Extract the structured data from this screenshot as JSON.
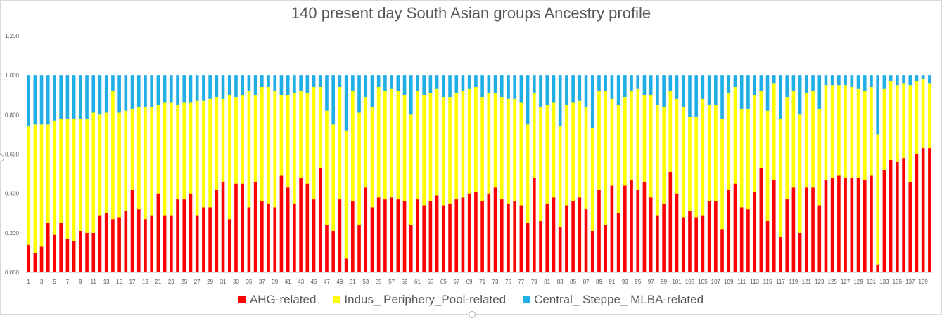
{
  "chart_data": {
    "type": "bar",
    "stacked": true,
    "title": "140 present day South Asian groups Ancestry profile",
    "ylim": [
      0,
      1.2
    ],
    "ytick_values": [
      0,
      0.2,
      0.4,
      0.6,
      0.8,
      1.0,
      1.2
    ],
    "ytick_labels": [
      "0.000",
      "0.200",
      "0.400",
      "0.600",
      "0.800",
      "1.000",
      "1.200"
    ],
    "grid": false,
    "legend_position": "bottom",
    "category_count": 140,
    "xtick_labels": [
      "1",
      "3",
      "5",
      "7",
      "9",
      "11",
      "13",
      "15",
      "17",
      "19",
      "21",
      "23",
      "25",
      "27",
      "29",
      "31",
      "33",
      "35",
      "37",
      "39",
      "41",
      "43",
      "45",
      "47",
      "49",
      "51",
      "53",
      "55",
      "57",
      "59",
      "61",
      "63",
      "65",
      "67",
      "69",
      "71",
      "73",
      "75",
      "77",
      "79",
      "81",
      "83",
      "85",
      "87",
      "89",
      "91",
      "93",
      "95",
      "97",
      "99",
      "101",
      "103",
      "105",
      "107",
      "109",
      "111",
      "113",
      "115",
      "117",
      "119",
      "121",
      "123",
      "125",
      "127",
      "129",
      "131",
      "133",
      "135",
      "137",
      "139"
    ],
    "series": [
      {
        "name": "AHG-related",
        "color": "#ff0000",
        "values": [
          0.14,
          0.1,
          0.13,
          0.25,
          0.19,
          0.25,
          0.17,
          0.16,
          0.21,
          0.2,
          0.2,
          0.29,
          0.3,
          0.27,
          0.28,
          0.31,
          0.42,
          0.32,
          0.27,
          0.29,
          0.4,
          0.29,
          0.29,
          0.37,
          0.37,
          0.4,
          0.29,
          0.33,
          0.33,
          0.42,
          0.46,
          0.27,
          0.45,
          0.45,
          0.33,
          0.46,
          0.36,
          0.35,
          0.33,
          0.49,
          0.43,
          0.35,
          0.48,
          0.45,
          0.37,
          0.53,
          0.24,
          0.21,
          0.37,
          0.07,
          0.36,
          0.24,
          0.43,
          0.33,
          0.38,
          0.37,
          0.38,
          0.37,
          0.36,
          0.24,
          0.37,
          0.34,
          0.36,
          0.39,
          0.34,
          0.35,
          0.37,
          0.38,
          0.4,
          0.41,
          0.36,
          0.4,
          0.43,
          0.37,
          0.35,
          0.36,
          0.34,
          0.25,
          0.48,
          0.26,
          0.35,
          0.38,
          0.23,
          0.34,
          0.36,
          0.38,
          0.32,
          0.21,
          0.42,
          0.24,
          0.44,
          0.3,
          0.44,
          0.47,
          0.42,
          0.46,
          0.38,
          0.29,
          0.35,
          0.51,
          0.4,
          0.28,
          0.31,
          0.28,
          0.29,
          0.36,
          0.36,
          0.22,
          0.42,
          0.45,
          0.33,
          0.32,
          0.41,
          0.53,
          0.26,
          0.47,
          0.18,
          0.37,
          0.43,
          0.2,
          0.43,
          0.43,
          0.34,
          0.47,
          0.48,
          0.49,
          0.48,
          0.48,
          0.48,
          0.47,
          0.49,
          0.04,
          0.52,
          0.57,
          0.56,
          0.58,
          0.46,
          0.6,
          0.63,
          0.63
        ]
      },
      {
        "name": "Indus_ Periphery_Pool-related",
        "color": "#ffff00",
        "values": [
          0.6,
          0.65,
          0.62,
          0.5,
          0.58,
          0.53,
          0.61,
          0.62,
          0.57,
          0.58,
          0.61,
          0.51,
          0.51,
          0.65,
          0.53,
          0.51,
          0.41,
          0.52,
          0.57,
          0.55,
          0.45,
          0.57,
          0.57,
          0.48,
          0.49,
          0.46,
          0.58,
          0.54,
          0.55,
          0.47,
          0.42,
          0.63,
          0.44,
          0.45,
          0.59,
          0.44,
          0.58,
          0.59,
          0.59,
          0.41,
          0.47,
          0.56,
          0.44,
          0.46,
          0.57,
          0.41,
          0.58,
          0.54,
          0.57,
          0.65,
          0.56,
          0.57,
          0.46,
          0.51,
          0.56,
          0.55,
          0.55,
          0.55,
          0.54,
          0.56,
          0.55,
          0.56,
          0.55,
          0.54,
          0.55,
          0.54,
          0.54,
          0.54,
          0.53,
          0.53,
          0.53,
          0.51,
          0.48,
          0.52,
          0.53,
          0.52,
          0.52,
          0.5,
          0.43,
          0.58,
          0.5,
          0.48,
          0.51,
          0.51,
          0.5,
          0.49,
          0.52,
          0.52,
          0.5,
          0.68,
          0.44,
          0.55,
          0.45,
          0.45,
          0.51,
          0.44,
          0.52,
          0.56,
          0.49,
          0.41,
          0.48,
          0.56,
          0.48,
          0.51,
          0.59,
          0.49,
          0.49,
          0.56,
          0.49,
          0.49,
          0.5,
          0.51,
          0.49,
          0.39,
          0.56,
          0.49,
          0.6,
          0.52,
          0.49,
          0.6,
          0.48,
          0.49,
          0.49,
          0.48,
          0.47,
          0.46,
          0.47,
          0.46,
          0.45,
          0.45,
          0.45,
          0.66,
          0.41,
          0.4,
          0.39,
          0.38,
          0.49,
          0.37,
          0.35,
          0.33
        ]
      },
      {
        "name": "Central_ Steppe_ MLBA-related",
        "color": "#1faee6",
        "values": [
          0.26,
          0.25,
          0.25,
          0.25,
          0.23,
          0.22,
          0.22,
          0.22,
          0.22,
          0.22,
          0.19,
          0.2,
          0.19,
          0.08,
          0.19,
          0.18,
          0.17,
          0.16,
          0.16,
          0.16,
          0.15,
          0.14,
          0.14,
          0.15,
          0.14,
          0.14,
          0.13,
          0.13,
          0.12,
          0.11,
          0.12,
          0.1,
          0.11,
          0.1,
          0.08,
          0.1,
          0.06,
          0.06,
          0.08,
          0.1,
          0.1,
          0.09,
          0.08,
          0.09,
          0.06,
          0.06,
          0.18,
          0.25,
          0.06,
          0.28,
          0.08,
          0.19,
          0.11,
          0.16,
          0.06,
          0.08,
          0.07,
          0.08,
          0.1,
          0.2,
          0.08,
          0.1,
          0.09,
          0.07,
          0.11,
          0.11,
          0.09,
          0.08,
          0.07,
          0.06,
          0.11,
          0.09,
          0.09,
          0.11,
          0.12,
          0.12,
          0.14,
          0.25,
          0.09,
          0.16,
          0.15,
          0.14,
          0.26,
          0.15,
          0.14,
          0.13,
          0.16,
          0.27,
          0.08,
          0.08,
          0.12,
          0.15,
          0.11,
          0.08,
          0.07,
          0.1,
          0.1,
          0.15,
          0.16,
          0.08,
          0.12,
          0.16,
          0.21,
          0.21,
          0.12,
          0.15,
          0.15,
          0.22,
          0.09,
          0.06,
          0.17,
          0.17,
          0.1,
          0.08,
          0.18,
          0.04,
          0.22,
          0.11,
          0.08,
          0.2,
          0.09,
          0.08,
          0.17,
          0.05,
          0.05,
          0.05,
          0.05,
          0.06,
          0.07,
          0.08,
          0.06,
          0.3,
          0.07,
          0.03,
          0.05,
          0.04,
          0.05,
          0.03,
          0.02,
          0.04
        ]
      }
    ]
  }
}
